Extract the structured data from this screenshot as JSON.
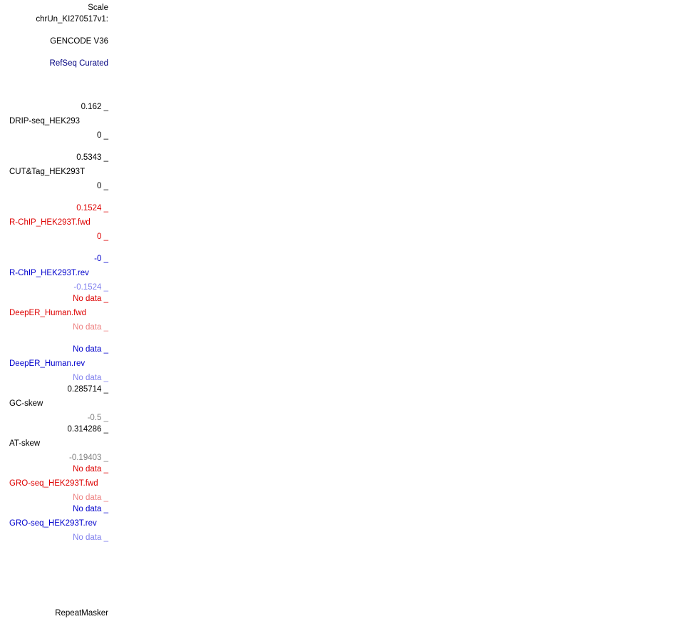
{
  "colors": {
    "black": "#000000",
    "grey": "#808080",
    "red": "#dd0000",
    "red_light": "#ee8080",
    "blue": "#0000cc",
    "navy": "#000080",
    "blue_light": "#8080ee"
  },
  "scale_label": "Scale",
  "chrom_label": "chrUn_KI270517v1:",
  "gencode_label": "GENCODE V36",
  "refseq_label": "RefSeq Curated",
  "repeatmasker_label": "RepeatMasker",
  "tracks": {
    "drip": {
      "name": "DRIP-seq_HEK293",
      "max": "0.162 _",
      "min": "0 _"
    },
    "cuttag": {
      "name": "CUT&Tag_HEK293T",
      "max": "0.5343 _",
      "min": "0 _"
    },
    "rchip_fwd": {
      "name": "R-ChIP_HEK293T.fwd",
      "max": "0.1524 _",
      "min": "0 _"
    },
    "rchip_rev": {
      "name": "R-ChIP_HEK293T.rev",
      "max": "-0 _",
      "min": "-0.1524 _"
    },
    "deeper_fwd": {
      "name": "DeepER_Human.fwd",
      "max": "No data _",
      "min": "No data _"
    },
    "deeper_rev": {
      "name": "DeepER_Human.rev",
      "max": "No data _",
      "min": "No data _"
    },
    "gc_skew": {
      "name": "GC-skew",
      "max": "0.285714 _",
      "min": "-0.5 _"
    },
    "at_skew": {
      "name": "AT-skew",
      "max": "0.314286 _",
      "min": "-0.19403 _"
    },
    "gro_fwd": {
      "name": "GRO-seq_HEK293T.fwd",
      "max": "No data _",
      "min": "No data _"
    },
    "gro_rev": {
      "name": "GRO-seq_HEK293T.rev",
      "max": "No data _",
      "min": "No data _"
    }
  }
}
